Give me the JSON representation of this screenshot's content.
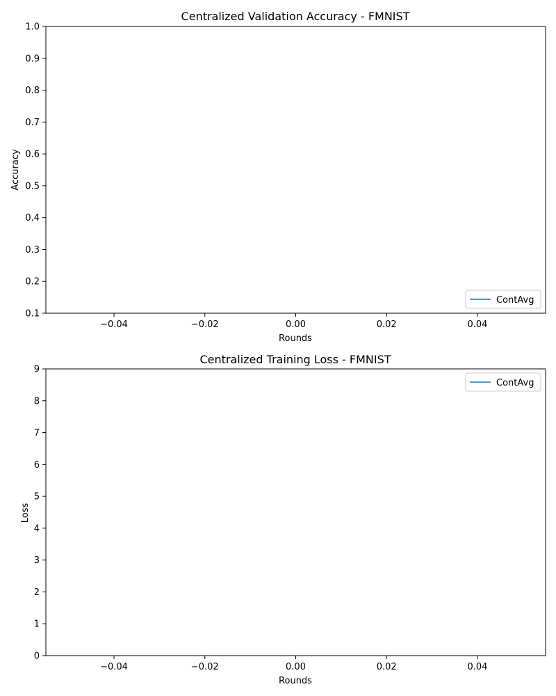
{
  "chart_data": [
    {
      "type": "line",
      "title": "Centralized Validation Accuracy - FMNIST",
      "xlabel": "Rounds",
      "ylabel": "Accuracy",
      "xlim": [
        -0.055,
        0.055
      ],
      "ylim": [
        0.1,
        1.0
      ],
      "xticks": [
        "−0.04",
        "−0.02",
        "0.00",
        "0.02",
        "0.04"
      ],
      "xtick_values": [
        -0.04,
        -0.02,
        0.0,
        0.02,
        0.04
      ],
      "yticks": [
        "0.1",
        "0.2",
        "0.3",
        "0.4",
        "0.5",
        "0.6",
        "0.7",
        "0.8",
        "0.9",
        "1.0"
      ],
      "ytick_values": [
        0.1,
        0.2,
        0.3,
        0.4,
        0.5,
        0.6,
        0.7,
        0.8,
        0.9,
        1.0
      ],
      "grid": false,
      "legend_placement": "lower-right",
      "series": [
        {
          "name": "ContAvg",
          "color": "#1f77b4",
          "x": [],
          "y": []
        }
      ]
    },
    {
      "type": "line",
      "title": "Centralized Training Loss - FMNIST",
      "xlabel": "Rounds",
      "ylabel": "Loss",
      "xlim": [
        -0.055,
        0.055
      ],
      "ylim": [
        0,
        9
      ],
      "xticks": [
        "−0.04",
        "−0.02",
        "0.00",
        "0.02",
        "0.04"
      ],
      "xtick_values": [
        -0.04,
        -0.02,
        0.0,
        0.02,
        0.04
      ],
      "yticks": [
        "0",
        "1",
        "2",
        "3",
        "4",
        "5",
        "6",
        "7",
        "8",
        "9"
      ],
      "ytick_values": [
        0,
        1,
        2,
        3,
        4,
        5,
        6,
        7,
        8,
        9
      ],
      "grid": false,
      "legend_placement": "upper-right",
      "series": [
        {
          "name": "ContAvg",
          "color": "#1f77b4",
          "x": [],
          "y": []
        }
      ]
    }
  ]
}
